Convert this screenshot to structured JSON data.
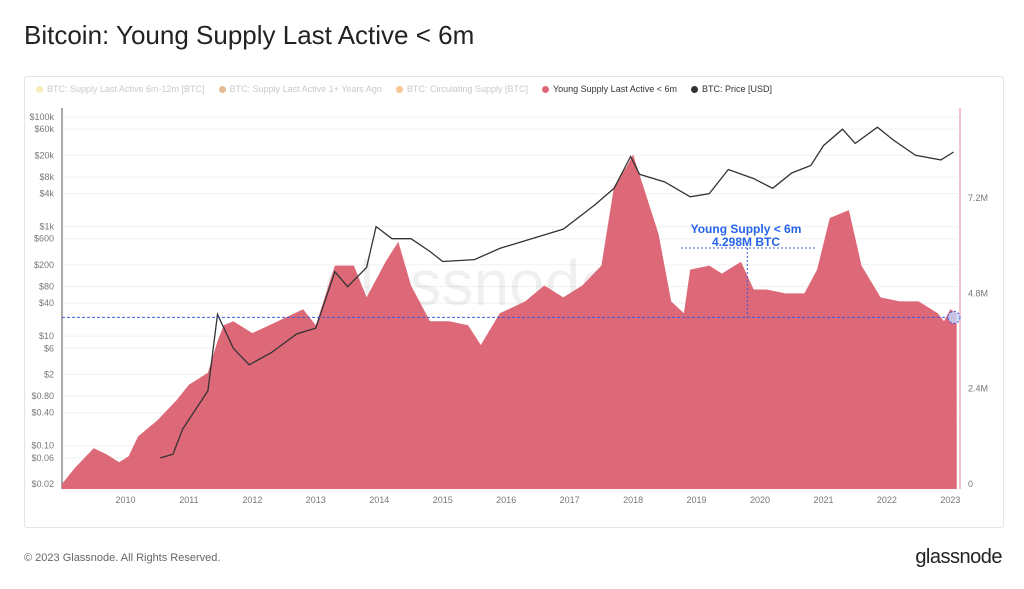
{
  "title": "Bitcoin: Young Supply Last Active < 6m",
  "legend": [
    {
      "label": "BTC: Supply Last Active 6m-12m [BTC]",
      "color": "#f7e08a",
      "active": false
    },
    {
      "label": "BTC: Supply Last Active 1+ Years Ago",
      "color": "#d68c4a",
      "active": false
    },
    {
      "label": "BTC: Circulating Supply [BTC]",
      "color": "#f4a04a",
      "active": false
    },
    {
      "label": "Young Supply Last Active < 6m",
      "color": "#dc6878",
      "active": true
    },
    {
      "label": "BTC: Price [USD]",
      "color": "#333333",
      "active": true
    }
  ],
  "footer": "© 2023 Glassnode. All Rights Reserved.",
  "brand": "glassnode",
  "watermark": "glassnode",
  "chart_data": {
    "type": "area",
    "title": "Bitcoin: Young Supply Last Active < 6m",
    "x_ticks": [
      "2010",
      "2011",
      "2012",
      "2013",
      "2014",
      "2015",
      "2016",
      "2017",
      "2018",
      "2019",
      "2020",
      "2021",
      "2022",
      "2023"
    ],
    "y_left_ticks": [
      "$100k",
      "$60k",
      "$20k",
      "$8k",
      "$4k",
      "$1k",
      "$600",
      "$200",
      "$80",
      "$40",
      "$10",
      "$6",
      "$2",
      "$0.80",
      "$0.40",
      "$0.10",
      "$0.06",
      "$0.02"
    ],
    "y_left_values": [
      100000,
      60000,
      20000,
      8000,
      4000,
      1000,
      600,
      200,
      80,
      40,
      10,
      6,
      2,
      0.8,
      0.4,
      0.1,
      0.06,
      0.02
    ],
    "y_left_scale": "log",
    "y_right_ticks": [
      "0",
      "2.4M",
      "4.8M",
      "7.2M"
    ],
    "y_right_values": [
      0,
      2.4,
      4.8,
      7.2
    ],
    "y_right_range": [
      0,
      9.3
    ],
    "x_range": [
      2009.0,
      2023.12
    ],
    "annotation": {
      "line1": "Young Supply < 6m",
      "line2": "4.298M BTC",
      "value": 4.298,
      "x": 2019.8
    },
    "series": [
      {
        "name": "Young Supply Last Active < 6m",
        "unit": "M BTC",
        "color": "#dc6878",
        "points": [
          [
            2009.0,
            0
          ],
          [
            2009.2,
            0.4
          ],
          [
            2009.5,
            0.9
          ],
          [
            2009.7,
            0.75
          ],
          [
            2009.9,
            0.55
          ],
          [
            2010.05,
            0.7
          ],
          [
            2010.2,
            1.2
          ],
          [
            2010.5,
            1.6
          ],
          [
            2010.8,
            2.1
          ],
          [
            2011.0,
            2.5
          ],
          [
            2011.3,
            2.8
          ],
          [
            2011.45,
            3.6
          ],
          [
            2011.55,
            4.0
          ],
          [
            2011.7,
            4.1
          ],
          [
            2012.0,
            3.8
          ],
          [
            2012.4,
            4.1
          ],
          [
            2012.8,
            4.4
          ],
          [
            2013.0,
            4.0
          ],
          [
            2013.3,
            5.5
          ],
          [
            2013.6,
            5.5
          ],
          [
            2013.8,
            4.7
          ],
          [
            2014.1,
            5.6
          ],
          [
            2014.3,
            6.1
          ],
          [
            2014.5,
            5.0
          ],
          [
            2014.8,
            4.1
          ],
          [
            2015.1,
            4.1
          ],
          [
            2015.4,
            4.0
          ],
          [
            2015.6,
            3.5
          ],
          [
            2015.9,
            4.3
          ],
          [
            2016.3,
            4.6
          ],
          [
            2016.6,
            5.0
          ],
          [
            2016.9,
            4.7
          ],
          [
            2017.2,
            5.0
          ],
          [
            2017.5,
            5.5
          ],
          [
            2017.7,
            7.5
          ],
          [
            2017.9,
            8.0
          ],
          [
            2018.0,
            8.3
          ],
          [
            2018.2,
            7.3
          ],
          [
            2018.4,
            6.3
          ],
          [
            2018.6,
            4.6
          ],
          [
            2018.8,
            4.3
          ],
          [
            2018.9,
            5.4
          ],
          [
            2019.2,
            5.5
          ],
          [
            2019.4,
            5.3
          ],
          [
            2019.7,
            5.6
          ],
          [
            2019.9,
            4.9
          ],
          [
            2020.1,
            4.9
          ],
          [
            2020.4,
            4.8
          ],
          [
            2020.7,
            4.8
          ],
          [
            2020.9,
            5.4
          ],
          [
            2021.1,
            6.7
          ],
          [
            2021.4,
            6.9
          ],
          [
            2021.6,
            5.5
          ],
          [
            2021.9,
            4.7
          ],
          [
            2022.2,
            4.6
          ],
          [
            2022.5,
            4.6
          ],
          [
            2022.8,
            4.3
          ],
          [
            2022.9,
            4.1
          ],
          [
            2023.0,
            4.4
          ],
          [
            2023.1,
            4.3
          ]
        ]
      },
      {
        "name": "BTC: Price [USD]",
        "unit": "USD",
        "color": "#333333",
        "points": [
          [
            2010.55,
            0.06
          ],
          [
            2010.75,
            0.07
          ],
          [
            2010.9,
            0.2
          ],
          [
            2011.0,
            0.3
          ],
          [
            2011.3,
            1
          ],
          [
            2011.45,
            25
          ],
          [
            2011.7,
            6
          ],
          [
            2011.95,
            3
          ],
          [
            2012.3,
            5
          ],
          [
            2012.7,
            11
          ],
          [
            2013.0,
            14
          ],
          [
            2013.3,
            150
          ],
          [
            2013.5,
            80
          ],
          [
            2013.8,
            180
          ],
          [
            2013.95,
            1000
          ],
          [
            2014.2,
            600
          ],
          [
            2014.5,
            600
          ],
          [
            2014.8,
            350
          ],
          [
            2015.0,
            230
          ],
          [
            2015.5,
            250
          ],
          [
            2015.9,
            400
          ],
          [
            2016.4,
            600
          ],
          [
            2016.9,
            900
          ],
          [
            2017.4,
            2500
          ],
          [
            2017.7,
            5000
          ],
          [
            2017.96,
            19000
          ],
          [
            2018.1,
            9000
          ],
          [
            2018.5,
            6500
          ],
          [
            2018.9,
            3500
          ],
          [
            2019.2,
            4000
          ],
          [
            2019.5,
            11000
          ],
          [
            2019.9,
            7500
          ],
          [
            2020.2,
            5000
          ],
          [
            2020.5,
            9500
          ],
          [
            2020.8,
            13000
          ],
          [
            2021.0,
            30000
          ],
          [
            2021.3,
            60000
          ],
          [
            2021.5,
            33000
          ],
          [
            2021.85,
            65000
          ],
          [
            2022.1,
            38000
          ],
          [
            2022.45,
            20000
          ],
          [
            2022.85,
            16500
          ],
          [
            2023.05,
            23000
          ]
        ]
      }
    ]
  }
}
